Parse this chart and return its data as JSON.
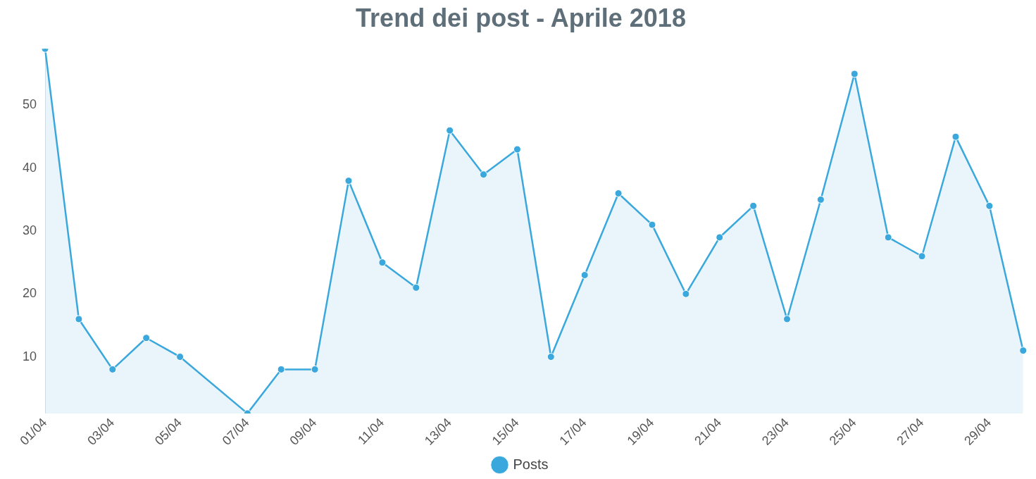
{
  "chart_data": {
    "type": "area",
    "title": "Trend dei post - Aprile 2018",
    "categories": [
      "01/04",
      null,
      "03/04",
      null,
      "05/04",
      null,
      "07/04",
      null,
      "09/04",
      null,
      "11/04",
      null,
      "13/04",
      null,
      "15/04",
      null,
      "17/04",
      null,
      "19/04",
      null,
      "21/04",
      null,
      "23/04",
      null,
      "25/04",
      null,
      "27/04",
      null,
      "29/04",
      null
    ],
    "series": [
      {
        "name": "Posts",
        "color": "#3aa8dc",
        "values": [
          59,
          16,
          8,
          13,
          10,
          null,
          1,
          8,
          8,
          38,
          25,
          21,
          46,
          39,
          43,
          10,
          23,
          36,
          31,
          20,
          29,
          34,
          16,
          35,
          55,
          29,
          26,
          45,
          34,
          11
        ]
      }
    ],
    "ylim": [
      1,
      59
    ],
    "yticks": [
      10,
      20,
      30,
      40,
      50
    ],
    "grid": false,
    "legend": "bottom",
    "marker": "circle",
    "line_style": "solid"
  }
}
